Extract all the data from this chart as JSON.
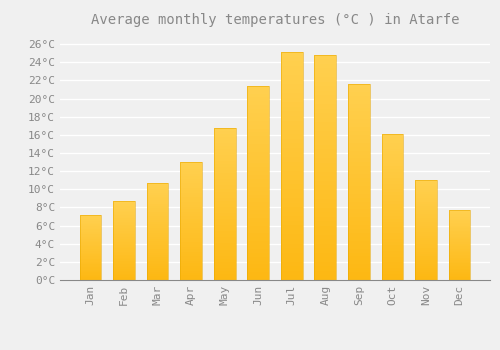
{
  "title": "Average monthly temperatures (°C ) in Atarfe",
  "months": [
    "Jan",
    "Feb",
    "Mar",
    "Apr",
    "May",
    "Jun",
    "Jul",
    "Aug",
    "Sep",
    "Oct",
    "Nov",
    "Dec"
  ],
  "values": [
    7.2,
    8.7,
    10.7,
    13.0,
    16.8,
    21.4,
    25.1,
    24.8,
    21.6,
    16.1,
    11.0,
    7.7
  ],
  "bar_color_bottom": "#FDB813",
  "bar_color_top": "#FFCF40",
  "bar_edge_color": "#E8A800",
  "background_color": "#f0f0f0",
  "grid_color": "#ffffff",
  "text_color": "#888888",
  "ylim": [
    0,
    27
  ],
  "ytick_step": 2,
  "title_fontsize": 10,
  "tick_fontsize": 8
}
